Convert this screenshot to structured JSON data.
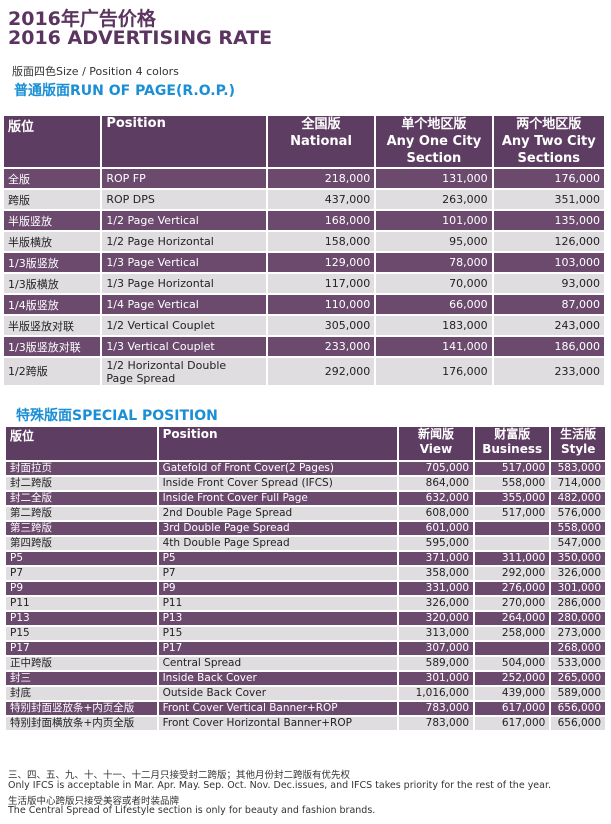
{
  "title_cn": "2016年广告价格",
  "title_en": "2016 ADVERTISING RATE",
  "subtitle": "版面四色Size / Position 4 colors",
  "rop": {
    "heading": "普通版面RUN OF PAGE(R.O.P.)",
    "headers": [
      "版位",
      "Position",
      "全国版\nNational",
      "单个地区版\nAny One City\nSection",
      "两个地区版\nAny Two City\nSections"
    ],
    "rows": [
      [
        "全版",
        "ROP FP",
        "218,000",
        "131,000",
        "176,000"
      ],
      [
        "跨版",
        "ROP DPS",
        "437,000",
        "263,000",
        "351,000"
      ],
      [
        "半版竖放",
        "1/2 Page Vertical",
        "168,000",
        "101,000",
        "135,000"
      ],
      [
        "半版横放",
        "1/2 Page Horizontal",
        "158,000",
        "95,000",
        "126,000"
      ],
      [
        "1/3版竖放",
        "1/3 Page Vertical",
        "129,000",
        "78,000",
        "103,000"
      ],
      [
        "1/3版横放",
        "1/3 Page Horizontal",
        "117,000",
        "70,000",
        "93,000"
      ],
      [
        "1/4版竖放",
        "1/4 Page Vertical",
        "110,000",
        "66,000",
        "87,000"
      ],
      [
        "半版竖放对联",
        "1/2 Vertical Couplet",
        "305,000",
        "183,000",
        "243,000"
      ],
      [
        "1/3版竖放对联",
        "1/3 Vertical Couplet",
        "233,000",
        "141,000",
        "186,000"
      ],
      [
        "1/2跨版",
        "1/2 Horizontal Double\nPage Spread",
        "292,000",
        "176,000",
        "233,000"
      ]
    ]
  },
  "special": {
    "heading": "特殊版面SPECIAL POSITION",
    "headers": [
      "版位",
      "Position",
      "新闻版\nView",
      "财富版\nBusiness",
      "生活版\nStyle"
    ],
    "rows": [
      [
        "封面拉页",
        "Gatefold of Front Cover(2 Pages)",
        "705,000",
        "517,000",
        "583,000"
      ],
      [
        "封二跨版",
        "Inside Front Cover Spread (IFCS)",
        "864,000",
        "558,000",
        "714,000"
      ],
      [
        "封二全版",
        "Inside Front Cover Full Page",
        "632,000",
        "355,000",
        "482,000"
      ],
      [
        "第二跨版",
        "2nd Double Page Spread",
        "608,000",
        "517,000",
        "576,000"
      ],
      [
        "第三跨版",
        "3rd Double Page Spread",
        "601,000",
        "",
        "558,000"
      ],
      [
        "第四跨版",
        "4th Double Page Spread",
        "595,000",
        "",
        "547,000"
      ],
      [
        "P5",
        "P5",
        "371,000",
        "311,000",
        "350,000"
      ],
      [
        "P7",
        "P7",
        "358,000",
        "292,000",
        "326,000"
      ],
      [
        "P9",
        "P9",
        "331,000",
        "276,000",
        "301,000"
      ],
      [
        "P11",
        "P11",
        "326,000",
        "270,000",
        "286,000"
      ],
      [
        "P13",
        "P13",
        "320,000",
        "264,000",
        "280,000"
      ],
      [
        "P15",
        "P15",
        "313,000",
        "258,000",
        "273,000"
      ],
      [
        "P17",
        "P17",
        "307,000",
        "",
        "268,000"
      ],
      [
        "正中跨版",
        "Central Spread",
        "589,000",
        "504,000",
        "533,000"
      ],
      [
        "封三",
        "Inside Back Cover",
        "301,000",
        "252,000",
        "265,000"
      ],
      [
        "封底",
        "Outside Back Cover",
        "1,016,000",
        "439,000",
        "589,000"
      ],
      [
        "特别封面竖放条+内页全版",
        "Front Cover Vertical Banner+ROP",
        "783,000",
        "617,000",
        "656,000"
      ],
      [
        "特别封面横放条+内页全版",
        "Front Cover Horizontal Banner+ROP",
        "783,000",
        "617,000",
        "656,000"
      ]
    ]
  },
  "notes": [
    "三、四、五、九、十、十一、十二月只接受封二跨版；其他月份封二跨版有优先权",
    "Only IFCS is acceptable in Mar. Apr. May. Sep. Oct. Nov. Dec.issues, and IFCS takes priority for the rest of the year.",
    "生活版中心跨版只接受美容或者时装品牌",
    "The Central Spread of Lifestyle section is only for beauty and fashion brands."
  ],
  "colors": {
    "header": "#5e3d62",
    "dark_row": "#6b4a6e",
    "light_row": "#e0dde1",
    "title": "#5b3560",
    "section": "#1a8fd6"
  }
}
